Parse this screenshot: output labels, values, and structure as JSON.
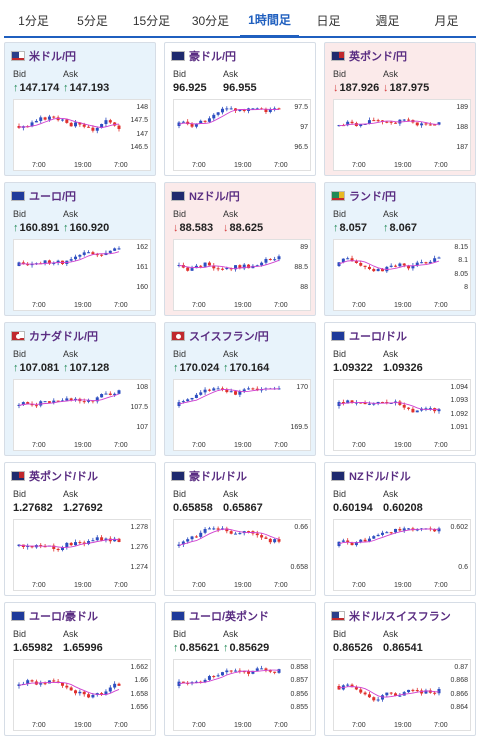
{
  "tabs": [
    {
      "label": "1分足"
    },
    {
      "label": "5分足"
    },
    {
      "label": "15分足"
    },
    {
      "label": "30分足"
    },
    {
      "label": "1時間足",
      "active": true
    },
    {
      "label": "日足"
    },
    {
      "label": "週足"
    },
    {
      "label": "月足"
    }
  ],
  "colors": {
    "accent": "#1f5fbf",
    "up_card_bg": "#e8f3fb",
    "down_card_bg": "#fbeaea",
    "up_arrow": "#1f8a55",
    "down_arrow": "#d23b3b",
    "candle_up": "#2d4ec0",
    "candle_down": "#e0302d",
    "ma_line": "#d040d0"
  },
  "common": {
    "bid_label": "Bid",
    "ask_label": "Ask",
    "x_ticks": [
      "7:00",
      "19:00",
      "7:00"
    ]
  },
  "cards": [
    {
      "name": "米ドル/円",
      "state": "up",
      "flag": "us",
      "bid": "147.174",
      "ask": "147.193",
      "bid_dir": "up",
      "ask_dir": "up",
      "yticks": [
        "148",
        "147.5",
        "147",
        "146.5"
      ],
      "seed": 3
    },
    {
      "name": "豪ドル/円",
      "state": "neutral",
      "flag": "au",
      "bid": "96.925",
      "ask": "96.955",
      "bid_dir": "",
      "ask_dir": "",
      "yticks": [
        "97.5",
        "97",
        "96.5"
      ],
      "seed": 5
    },
    {
      "name": "英ポンド/円",
      "state": "down",
      "flag": "gb",
      "bid": "187.926",
      "ask": "187.975",
      "bid_dir": "down",
      "ask_dir": "down",
      "yticks": [
        "189",
        "188",
        "187"
      ],
      "seed": 7
    },
    {
      "name": "ユーロ/円",
      "state": "up",
      "flag": "eu",
      "bid": "160.891",
      "ask": "160.920",
      "bid_dir": "up",
      "ask_dir": "up",
      "yticks": [
        "162",
        "161",
        "160"
      ],
      "seed": 11
    },
    {
      "name": "NZドル/円",
      "state": "down",
      "flag": "nz",
      "bid": "88.583",
      "ask": "88.625",
      "bid_dir": "down",
      "ask_dir": "down",
      "yticks": [
        "89",
        "88.5",
        "88"
      ],
      "seed": 13
    },
    {
      "name": "ランド/円",
      "state": "up",
      "flag": "za",
      "bid": "8.057",
      "ask": "8.067",
      "bid_dir": "up",
      "ask_dir": "up",
      "yticks": [
        "8.15",
        "8.1",
        "8.05",
        "8"
      ],
      "seed": 17
    },
    {
      "name": "カナダドル/円",
      "state": "up",
      "flag": "ca",
      "bid": "107.081",
      "ask": "107.128",
      "bid_dir": "up",
      "ask_dir": "up",
      "yticks": [
        "108",
        "107.5",
        "107"
      ],
      "seed": 19
    },
    {
      "name": "スイスフラン/円",
      "state": "up",
      "flag": "ch",
      "bid": "170.024",
      "ask": "170.164",
      "bid_dir": "up",
      "ask_dir": "up",
      "yticks": [
        "170",
        "169.5"
      ],
      "seed": 23
    },
    {
      "name": "ユーロ/ドル",
      "state": "neutral",
      "flag": "eu",
      "bid": "1.09322",
      "ask": "1.09326",
      "bid_dir": "",
      "ask_dir": "",
      "yticks": [
        "1.094",
        "1.093",
        "1.092",
        "1.091"
      ],
      "seed": 29
    },
    {
      "name": "英ポンド/ドル",
      "state": "neutral",
      "flag": "gb",
      "bid": "1.27682",
      "ask": "1.27692",
      "bid_dir": "",
      "ask_dir": "",
      "yticks": [
        "1.278",
        "1.276",
        "1.274"
      ],
      "seed": 31
    },
    {
      "name": "豪ドル/ドル",
      "state": "neutral",
      "flag": "au",
      "bid": "0.65858",
      "ask": "0.65867",
      "bid_dir": "",
      "ask_dir": "",
      "yticks": [
        "0.66",
        "0.658"
      ],
      "seed": 37
    },
    {
      "name": "NZドル/ドル",
      "state": "neutral",
      "flag": "nz",
      "bid": "0.60194",
      "ask": "0.60208",
      "bid_dir": "",
      "ask_dir": "",
      "yticks": [
        "0.602",
        "0.6"
      ],
      "seed": 41
    },
    {
      "name": "ユーロ/豪ドル",
      "state": "neutral",
      "flag": "eu",
      "bid": "1.65982",
      "ask": "1.65996",
      "bid_dir": "",
      "ask_dir": "",
      "yticks": [
        "1.662",
        "1.66",
        "1.658",
        "1.656"
      ],
      "seed": 43
    },
    {
      "name": "ユーロ/英ポンド",
      "state": "neutral",
      "flag": "eu",
      "bid": "0.85621",
      "ask": "0.85629",
      "bid_dir": "up",
      "ask_dir": "up",
      "yticks": [
        "0.858",
        "0.857",
        "0.856",
        "0.855"
      ],
      "seed": 47
    },
    {
      "name": "米ドル/スイスフラン",
      "state": "neutral",
      "flag": "us",
      "bid": "0.86526",
      "ask": "0.86541",
      "bid_dir": "",
      "ask_dir": "",
      "yticks": [
        "0.87",
        "0.868",
        "0.866",
        "0.864"
      ],
      "seed": 53
    }
  ]
}
